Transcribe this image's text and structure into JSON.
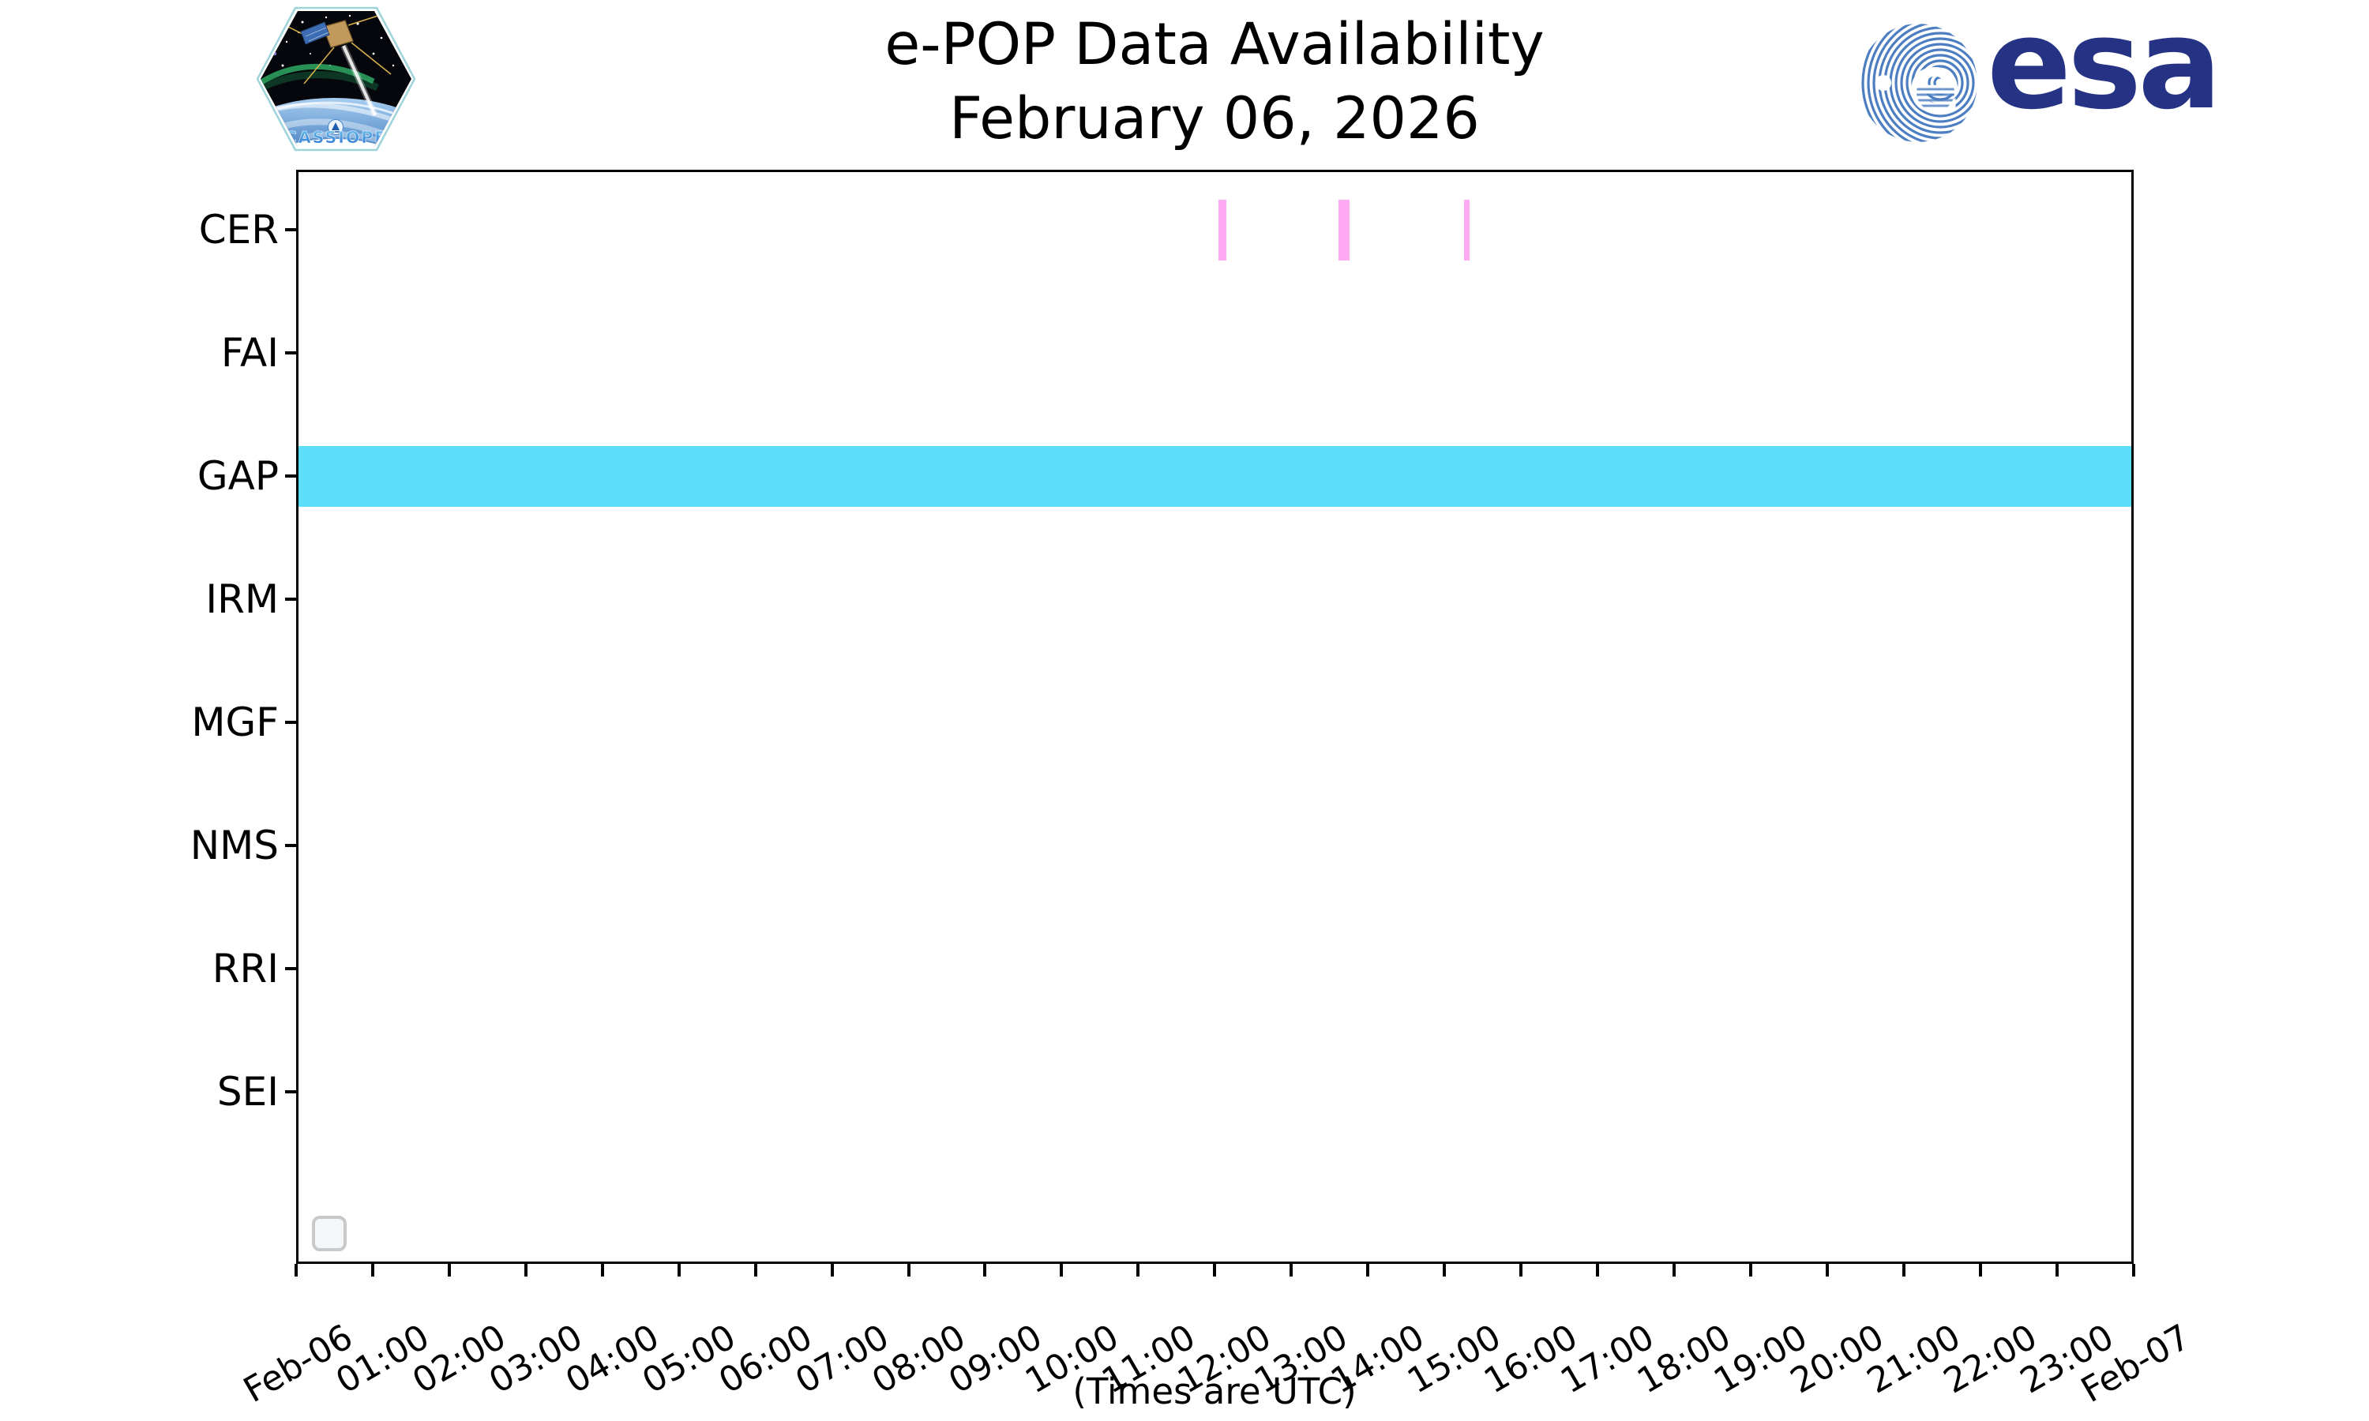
{
  "header": {
    "title_line1": "e-POP Data Availability",
    "title_line2": "February 06, 2026"
  },
  "footer": {
    "caption": "(Times are UTC)"
  },
  "logos": {
    "cassiope": {
      "name": "CASSIOPE"
    },
    "esa": {
      "wordmark": "esa",
      "emblem_letter": "e"
    }
  },
  "colors": {
    "cer_bar": "#ffaaf2",
    "gap_band": "#5cdefa",
    "axis": "#000000",
    "esa_navy": "#263384",
    "esa_stripe": "#4d7ec1",
    "legend_border": "#c9c9c9"
  },
  "chart_data": {
    "type": "timeline",
    "title": "e-POP Data Availability",
    "subtitle": "February 06, 2026",
    "y_categories": [
      "CER",
      "FAI",
      "GAP",
      "IRM",
      "MGF",
      "NMS",
      "RRI",
      "SEI"
    ],
    "x_axis": {
      "start": "Feb-06 00:00",
      "end": "Feb-07 00:00",
      "note": "(Times are UTC)",
      "tick_labels": [
        "Feb-06",
        "01:00",
        "02:00",
        "03:00",
        "04:00",
        "05:00",
        "06:00",
        "07:00",
        "08:00",
        "09:00",
        "10:00",
        "11:00",
        "12:00",
        "13:00",
        "14:00",
        "15:00",
        "16:00",
        "17:00",
        "18:00",
        "19:00",
        "20:00",
        "21:00",
        "22:00",
        "23:00",
        "Feb-07"
      ]
    },
    "series": [
      {
        "instrument": "CER",
        "color": "#ffaaf2",
        "intervals": [
          [
            "12:03",
            "12:09"
          ],
          [
            "13:37",
            "13:46"
          ],
          [
            "15:16",
            "15:20"
          ]
        ]
      },
      {
        "instrument": "GAP",
        "color": "#5cdefa",
        "intervals": [
          [
            "00:00",
            "24:00"
          ]
        ]
      }
    ],
    "legend": {
      "visible": true,
      "entries": []
    },
    "grid": false,
    "legend_position": "lower left"
  }
}
